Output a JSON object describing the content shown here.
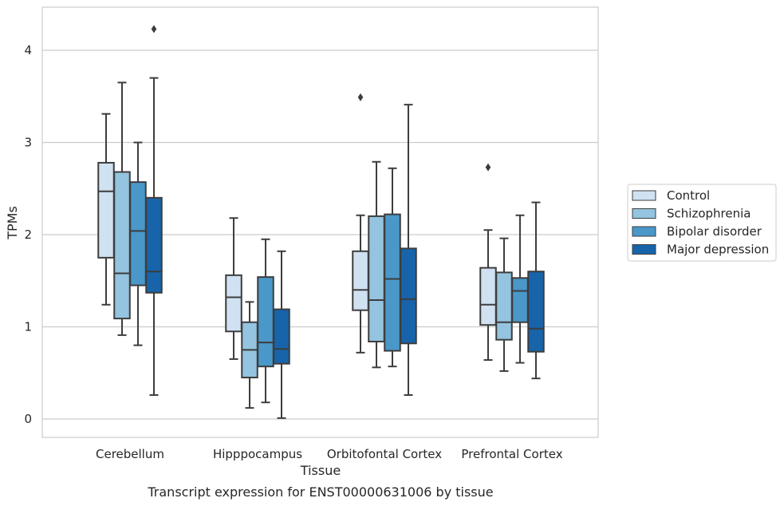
{
  "caption": "Transcript expression for ENST00000631006 by tissue",
  "chart_data": {
    "type": "boxplot",
    "xlabel": "Tissue",
    "ylabel": "TPMs",
    "ylim": [
      -0.2,
      4.45
    ],
    "yticks": [
      0,
      1,
      2,
      3,
      4
    ],
    "grid": "horizontal",
    "legend_position": "right",
    "categories": [
      "Cerebellum",
      "Hipppocampus",
      "Orbitofontal Cortex",
      "Prefrontal Cortex"
    ],
    "series": [
      {
        "name": "Control",
        "color": "#d0e1f2",
        "boxes": [
          {
            "whislo": 1.24,
            "q1": 1.75,
            "med": 2.47,
            "q3": 2.78,
            "whishi": 3.31,
            "fliers": []
          },
          {
            "whislo": 0.65,
            "q1": 0.95,
            "med": 1.32,
            "q3": 1.56,
            "whishi": 2.18,
            "fliers": []
          },
          {
            "whislo": 0.72,
            "q1": 1.18,
            "med": 1.4,
            "q3": 1.82,
            "whishi": 2.21,
            "fliers": [
              3.49
            ]
          },
          {
            "whislo": 0.64,
            "q1": 1.02,
            "med": 1.24,
            "q3": 1.64,
            "whishi": 2.05,
            "fliers": [
              2.73
            ]
          }
        ]
      },
      {
        "name": "Schizophrenia",
        "color": "#94c4df",
        "boxes": [
          {
            "whislo": 0.91,
            "q1": 1.09,
            "med": 1.58,
            "q3": 2.68,
            "whishi": 3.65,
            "fliers": []
          },
          {
            "whislo": 0.12,
            "q1": 0.45,
            "med": 0.75,
            "q3": 1.05,
            "whishi": 1.27,
            "fliers": []
          },
          {
            "whislo": 0.56,
            "q1": 0.84,
            "med": 1.29,
            "q3": 2.2,
            "whishi": 2.79,
            "fliers": []
          },
          {
            "whislo": 0.52,
            "q1": 0.86,
            "med": 1.05,
            "q3": 1.59,
            "whishi": 1.96,
            "fliers": []
          }
        ]
      },
      {
        "name": "Bipolar disorder",
        "color": "#4a98c9",
        "boxes": [
          {
            "whislo": 0.8,
            "q1": 1.45,
            "med": 2.04,
            "q3": 2.57,
            "whishi": 3.0,
            "fliers": []
          },
          {
            "whislo": 0.18,
            "q1": 0.57,
            "med": 0.83,
            "q3": 1.54,
            "whishi": 1.95,
            "fliers": []
          },
          {
            "whislo": 0.57,
            "q1": 0.74,
            "med": 1.52,
            "q3": 2.22,
            "whishi": 2.72,
            "fliers": []
          },
          {
            "whislo": 0.61,
            "q1": 1.05,
            "med": 1.39,
            "q3": 1.53,
            "whishi": 2.21,
            "fliers": []
          }
        ]
      },
      {
        "name": "Major depression",
        "color": "#1764ab",
        "boxes": [
          {
            "whislo": 0.26,
            "q1": 1.37,
            "med": 1.6,
            "q3": 2.4,
            "whishi": 3.7,
            "fliers": [
              4.23
            ]
          },
          {
            "whislo": 0.01,
            "q1": 0.6,
            "med": 0.76,
            "q3": 1.19,
            "whishi": 1.82,
            "fliers": []
          },
          {
            "whislo": 0.26,
            "q1": 0.82,
            "med": 1.3,
            "q3": 1.85,
            "whishi": 3.41,
            "fliers": []
          },
          {
            "whislo": 0.44,
            "q1": 0.73,
            "med": 0.98,
            "q3": 1.6,
            "whishi": 2.35,
            "fliers": []
          }
        ]
      }
    ]
  }
}
